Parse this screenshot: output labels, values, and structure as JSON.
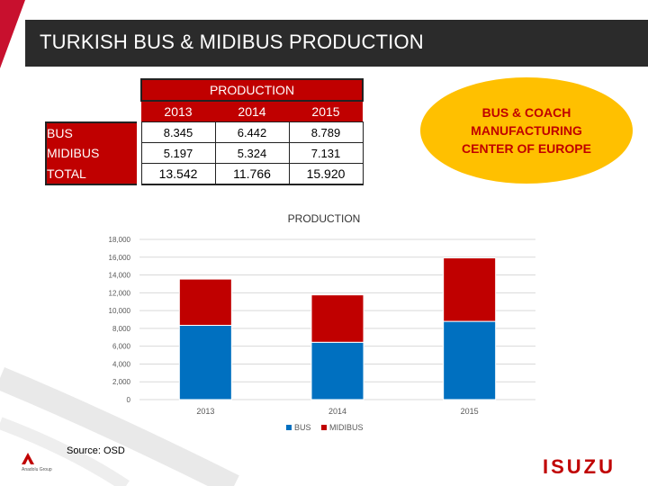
{
  "page": {
    "title": "TURKISH BUS & MIDIBUS PRODUCTION",
    "source": "Source: OSD",
    "logo_text": "ISUZU",
    "company_text": "Anadolu Group"
  },
  "table": {
    "header": "PRODUCTION",
    "years": [
      "2013",
      "2014",
      "2015"
    ],
    "rows": [
      {
        "label": "BUS",
        "values": [
          "8.345",
          "6.442",
          "8.789"
        ]
      },
      {
        "label": "MIDIBUS",
        "values": [
          "5.197",
          "5.324",
          "7.131"
        ]
      },
      {
        "label": "TOTAL",
        "values": [
          "13.542",
          "11.766",
          "15.920"
        ]
      }
    ]
  },
  "callout": {
    "lines": [
      "BUS & COACH",
      "MANUFACTURING",
      "CENTER OF EUROPE"
    ]
  },
  "colors": {
    "bus": "#0070c0",
    "midibus": "#c00000",
    "accent": "#c00000",
    "callout_bg": "#ffc000"
  },
  "chart_data": {
    "type": "bar",
    "stacked": true,
    "title": "PRODUCTION",
    "categories": [
      "2013",
      "2014",
      "2015"
    ],
    "series": [
      {
        "name": "BUS",
        "values": [
          8345,
          6442,
          8789
        ]
      },
      {
        "name": "MIDIBUS",
        "values": [
          5197,
          5324,
          7131
        ]
      }
    ],
    "ylim": [
      0,
      18000
    ],
    "yticks": [
      "0",
      "2,000",
      "4,000",
      "6,000",
      "8,000",
      "10,000",
      "12,000",
      "14,000",
      "16,000",
      "18,000"
    ],
    "grid": true,
    "legend": "bottom"
  }
}
